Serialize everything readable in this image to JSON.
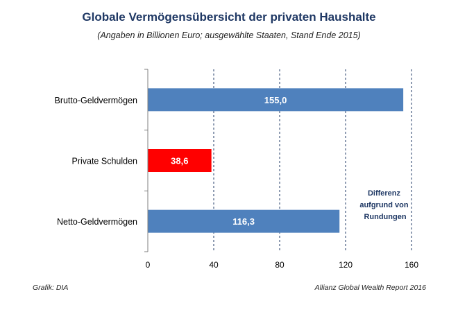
{
  "chart_data": {
    "type": "bar",
    "orientation": "horizontal",
    "title": "Globale Vermögensübersicht der privaten Haushalte",
    "subtitle": "(Angaben in Billionen Euro; ausgewählte Staaten, Stand Ende 2015)",
    "categories": [
      "Brutto-Geldvermögen",
      "Private Schulden",
      "Netto-Geldvermögen"
    ],
    "values": [
      155.0,
      38.6,
      116.3
    ],
    "value_labels": [
      "155,0",
      "38,6",
      "116,3"
    ],
    "bar_colors": [
      "#4f81bd",
      "#ff0000",
      "#4f81bd"
    ],
    "xlim": [
      0,
      160
    ],
    "x_ticks": [
      0,
      40,
      80,
      120,
      160
    ],
    "x_tick_labels": [
      "0",
      "40",
      "80",
      "120",
      "160"
    ],
    "grid": "vertical dashed",
    "annotation": [
      "Differenz",
      "aufgrund von",
      "Rundungen"
    ]
  },
  "footer": {
    "left": "Grafik: DIA",
    "right": "Allianz Global Wealth Report 2016"
  }
}
